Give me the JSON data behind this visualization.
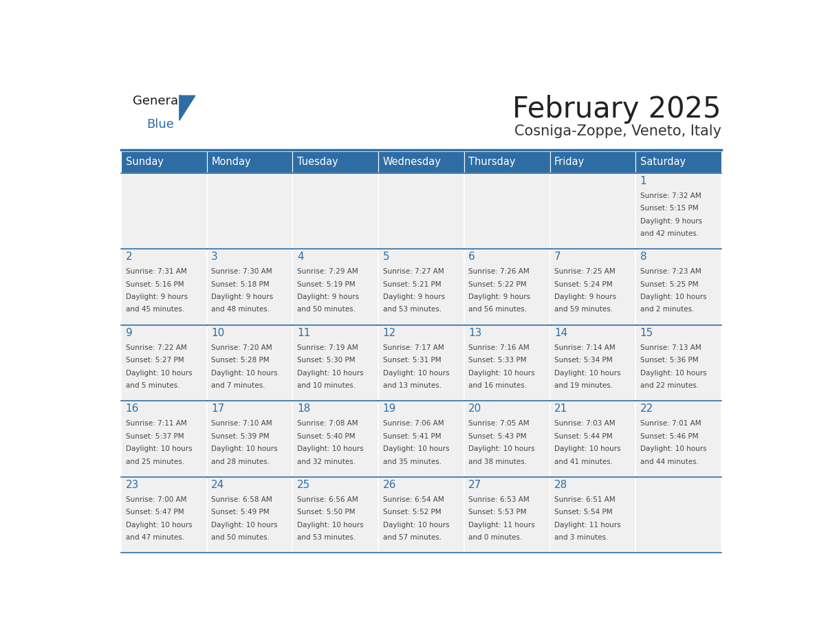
{
  "title": "February 2025",
  "subtitle": "Cosniga-Zoppe, Veneto, Italy",
  "header_bg": "#2E6DA4",
  "header_text": "#FFFFFF",
  "cell_bg": "#F0F0F0",
  "day_headers": [
    "Sunday",
    "Monday",
    "Tuesday",
    "Wednesday",
    "Thursday",
    "Friday",
    "Saturday"
  ],
  "title_color": "#222222",
  "subtitle_color": "#333333",
  "date_color": "#2E6DA4",
  "info_color": "#444444",
  "line_color": "#2E6DA4",
  "logo_general_color": "#1a1a1a",
  "logo_blue_color": "#2E6DA4",
  "weeks": [
    [
      {
        "day": null,
        "info": ""
      },
      {
        "day": null,
        "info": ""
      },
      {
        "day": null,
        "info": ""
      },
      {
        "day": null,
        "info": ""
      },
      {
        "day": null,
        "info": ""
      },
      {
        "day": null,
        "info": ""
      },
      {
        "day": 1,
        "info": "Sunrise: 7:32 AM\nSunset: 5:15 PM\nDaylight: 9 hours\nand 42 minutes."
      }
    ],
    [
      {
        "day": 2,
        "info": "Sunrise: 7:31 AM\nSunset: 5:16 PM\nDaylight: 9 hours\nand 45 minutes."
      },
      {
        "day": 3,
        "info": "Sunrise: 7:30 AM\nSunset: 5:18 PM\nDaylight: 9 hours\nand 48 minutes."
      },
      {
        "day": 4,
        "info": "Sunrise: 7:29 AM\nSunset: 5:19 PM\nDaylight: 9 hours\nand 50 minutes."
      },
      {
        "day": 5,
        "info": "Sunrise: 7:27 AM\nSunset: 5:21 PM\nDaylight: 9 hours\nand 53 minutes."
      },
      {
        "day": 6,
        "info": "Sunrise: 7:26 AM\nSunset: 5:22 PM\nDaylight: 9 hours\nand 56 minutes."
      },
      {
        "day": 7,
        "info": "Sunrise: 7:25 AM\nSunset: 5:24 PM\nDaylight: 9 hours\nand 59 minutes."
      },
      {
        "day": 8,
        "info": "Sunrise: 7:23 AM\nSunset: 5:25 PM\nDaylight: 10 hours\nand 2 minutes."
      }
    ],
    [
      {
        "day": 9,
        "info": "Sunrise: 7:22 AM\nSunset: 5:27 PM\nDaylight: 10 hours\nand 5 minutes."
      },
      {
        "day": 10,
        "info": "Sunrise: 7:20 AM\nSunset: 5:28 PM\nDaylight: 10 hours\nand 7 minutes."
      },
      {
        "day": 11,
        "info": "Sunrise: 7:19 AM\nSunset: 5:30 PM\nDaylight: 10 hours\nand 10 minutes."
      },
      {
        "day": 12,
        "info": "Sunrise: 7:17 AM\nSunset: 5:31 PM\nDaylight: 10 hours\nand 13 minutes."
      },
      {
        "day": 13,
        "info": "Sunrise: 7:16 AM\nSunset: 5:33 PM\nDaylight: 10 hours\nand 16 minutes."
      },
      {
        "day": 14,
        "info": "Sunrise: 7:14 AM\nSunset: 5:34 PM\nDaylight: 10 hours\nand 19 minutes."
      },
      {
        "day": 15,
        "info": "Sunrise: 7:13 AM\nSunset: 5:36 PM\nDaylight: 10 hours\nand 22 minutes."
      }
    ],
    [
      {
        "day": 16,
        "info": "Sunrise: 7:11 AM\nSunset: 5:37 PM\nDaylight: 10 hours\nand 25 minutes."
      },
      {
        "day": 17,
        "info": "Sunrise: 7:10 AM\nSunset: 5:39 PM\nDaylight: 10 hours\nand 28 minutes."
      },
      {
        "day": 18,
        "info": "Sunrise: 7:08 AM\nSunset: 5:40 PM\nDaylight: 10 hours\nand 32 minutes."
      },
      {
        "day": 19,
        "info": "Sunrise: 7:06 AM\nSunset: 5:41 PM\nDaylight: 10 hours\nand 35 minutes."
      },
      {
        "day": 20,
        "info": "Sunrise: 7:05 AM\nSunset: 5:43 PM\nDaylight: 10 hours\nand 38 minutes."
      },
      {
        "day": 21,
        "info": "Sunrise: 7:03 AM\nSunset: 5:44 PM\nDaylight: 10 hours\nand 41 minutes."
      },
      {
        "day": 22,
        "info": "Sunrise: 7:01 AM\nSunset: 5:46 PM\nDaylight: 10 hours\nand 44 minutes."
      }
    ],
    [
      {
        "day": 23,
        "info": "Sunrise: 7:00 AM\nSunset: 5:47 PM\nDaylight: 10 hours\nand 47 minutes."
      },
      {
        "day": 24,
        "info": "Sunrise: 6:58 AM\nSunset: 5:49 PM\nDaylight: 10 hours\nand 50 minutes."
      },
      {
        "day": 25,
        "info": "Sunrise: 6:56 AM\nSunset: 5:50 PM\nDaylight: 10 hours\nand 53 minutes."
      },
      {
        "day": 26,
        "info": "Sunrise: 6:54 AM\nSunset: 5:52 PM\nDaylight: 10 hours\nand 57 minutes."
      },
      {
        "day": 27,
        "info": "Sunrise: 6:53 AM\nSunset: 5:53 PM\nDaylight: 11 hours\nand 0 minutes."
      },
      {
        "day": 28,
        "info": "Sunrise: 6:51 AM\nSunset: 5:54 PM\nDaylight: 11 hours\nand 3 minutes."
      },
      {
        "day": null,
        "info": ""
      }
    ]
  ]
}
